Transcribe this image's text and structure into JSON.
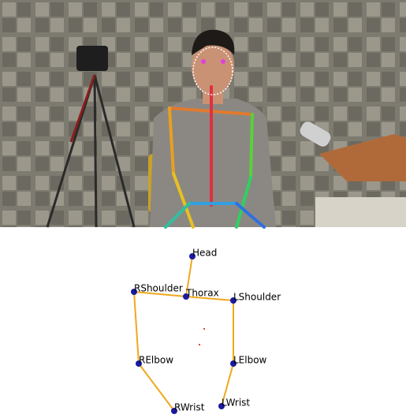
{
  "skeleton": {
    "nodes": [
      "Head",
      "Thorax",
      "RShoulder",
      "LShoulder",
      "RElbow",
      "LElbow",
      "RWrist",
      "LWrist"
    ]
  }
}
